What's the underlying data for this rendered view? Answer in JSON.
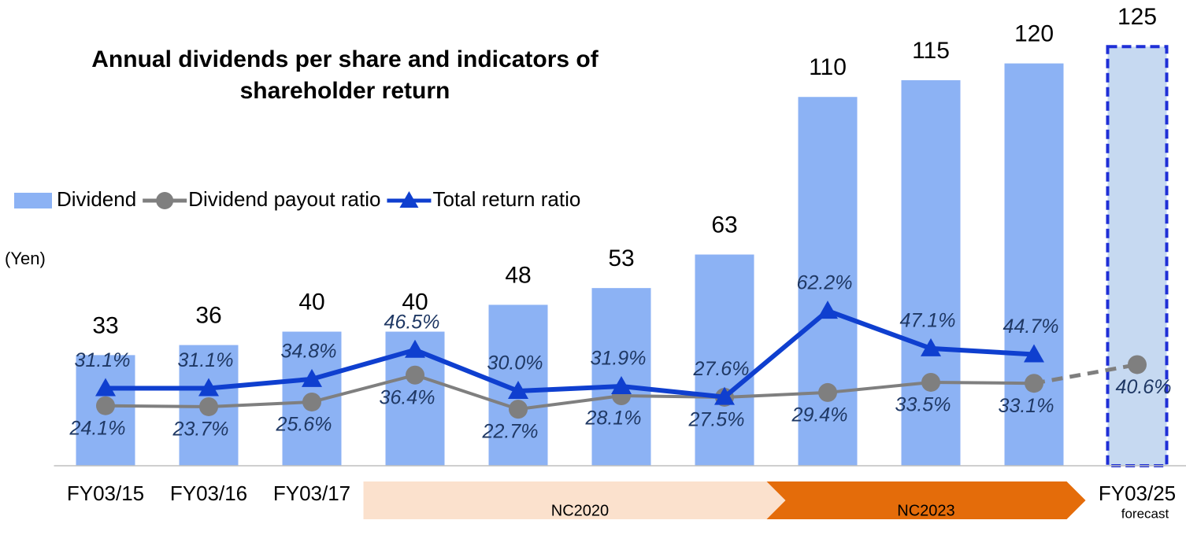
{
  "chart_data": {
    "type": "bar-line",
    "title": "Annual dividends per share and indicators of shareholder return",
    "y_label": "(Yen)",
    "categories": [
      "FY03/15",
      "FY03/16",
      "FY03/17",
      "FY03/18",
      "FY03/19",
      "FY03/20",
      "FY03/21",
      "FY03/22",
      "FY03/23",
      "FY03/24",
      "FY03/25"
    ],
    "forecast": {
      "label": "forecast",
      "color": "#c6d9f1",
      "border": "#1f2fd6"
    },
    "ylim": [
      0,
      130
    ],
    "y2lim": [
      0,
      175
    ],
    "series": [
      {
        "name": "Dividend",
        "type": "bar",
        "color": "#8cb2f4",
        "values": [
          33,
          36,
          40,
          40,
          48,
          53,
          63,
          110,
          115,
          120,
          125
        ]
      },
      {
        "name": "Dividend payout ratio",
        "type": "line",
        "marker": "circle",
        "axis": "y2",
        "color": "#7f7f7f",
        "values": [
          24.1,
          23.7,
          25.6,
          36.4,
          22.7,
          28.1,
          27.5,
          29.4,
          33.5,
          33.1,
          40.6
        ],
        "value_labels": [
          "24.1%",
          "23.7%",
          "25.6%",
          "36.4%",
          "22.7%",
          "28.1%",
          "27.5%",
          "29.4%",
          "33.5%",
          "33.1%",
          "40.6%"
        ]
      },
      {
        "name": "Total return ratio",
        "type": "line",
        "marker": "triangle",
        "axis": "y2",
        "color": "#0f3fcf",
        "values": [
          31.1,
          31.1,
          34.8,
          46.5,
          30.0,
          31.9,
          27.6,
          62.2,
          47.1,
          44.7,
          null
        ],
        "value_labels": [
          "31.1%",
          "31.1%",
          "34.8%",
          "46.5%",
          "30.0%",
          "31.9%",
          "27.6%",
          "62.2%",
          "47.1%",
          "44.7%",
          null
        ]
      }
    ],
    "phases": [
      {
        "label": "NC2020",
        "color": "#fbe1cd"
      },
      {
        "label": "NC2023",
        "color": "#e46c0a"
      }
    ]
  }
}
